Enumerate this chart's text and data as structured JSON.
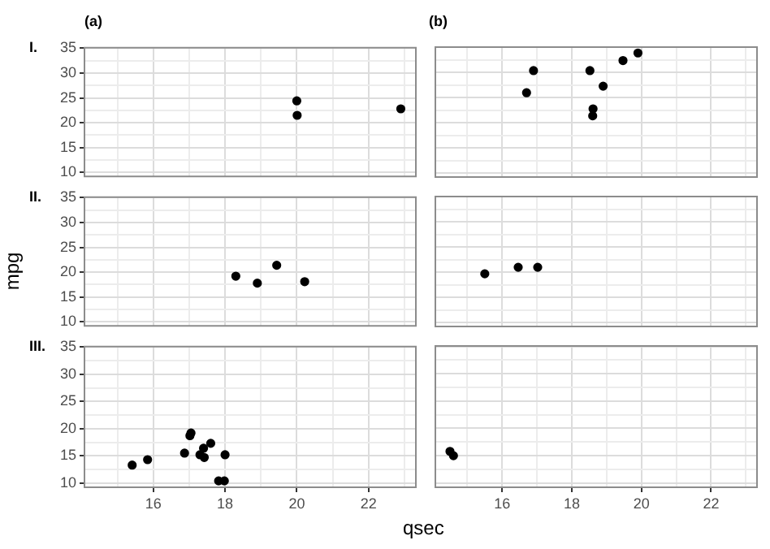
{
  "chart_data": [
    {
      "type": "scatter",
      "title": "(a)",
      "annotations": [
        "I."
      ],
      "x": [
        20.0,
        22.9,
        20.01
      ],
      "values": [
        24.4,
        22.8,
        21.5
      ],
      "color": "#000000",
      "marker": "circle",
      "xlim": [
        14.08,
        23.32
      ],
      "ylim": [
        9.225,
        35.075
      ],
      "xticks": [
        {
          "value": 15,
          "label": null
        },
        16,
        {
          "value": 17,
          "label": null
        },
        18,
        {
          "value": 19,
          "label": null
        },
        20,
        {
          "value": 21,
          "label": null
        },
        22,
        {
          "value": 23,
          "label": null
        }
      ],
      "yticks": [
        10,
        {
          "value": 12.5,
          "label": null
        },
        15,
        {
          "value": 17.5,
          "label": null
        },
        20,
        {
          "value": 22.5,
          "label": null
        },
        25,
        {
          "value": 27.5,
          "label": null
        },
        30,
        {
          "value": 32.5,
          "label": null
        },
        35
      ],
      "grid": true,
      "tick_labels": "y"
    },
    {
      "type": "scatter",
      "title": "(b)",
      "x": [
        18.61,
        19.47,
        18.52,
        19.9,
        18.9,
        16.7,
        16.9,
        18.6
      ],
      "values": [
        22.8,
        32.4,
        30.4,
        33.9,
        27.3,
        26.0,
        30.4,
        21.4
      ],
      "color": "#000000",
      "marker": "circle",
      "xlim": [
        14.08,
        23.32
      ],
      "ylim": [
        9.225,
        35.075
      ],
      "xticks": [
        {
          "value": 15,
          "label": null
        },
        16,
        {
          "value": 17,
          "label": null
        },
        18,
        {
          "value": 19,
          "label": null
        },
        20,
        {
          "value": 21,
          "label": null
        },
        22,
        {
          "value": 23,
          "label": null
        }
      ],
      "yticks": [
        10,
        {
          "value": 12.5,
          "label": null
        },
        15,
        {
          "value": 17.5,
          "label": null
        },
        20,
        {
          "value": 22.5,
          "label": null
        },
        25,
        {
          "value": 27.5,
          "label": null
        },
        30,
        {
          "value": 32.5,
          "label": null
        },
        35
      ],
      "grid": true,
      "tick_labels": false
    },
    {
      "type": "scatter",
      "ylabel": "mpg",
      "annotations": [
        "II."
      ],
      "x": [
        19.44,
        20.22,
        18.3,
        18.9
      ],
      "values": [
        21.4,
        18.1,
        19.2,
        17.8
      ],
      "color": "#000000",
      "marker": "circle",
      "xlim": [
        14.08,
        23.32
      ],
      "ylim": [
        9.225,
        35.075
      ],
      "xticks": [
        {
          "value": 15,
          "label": null
        },
        16,
        {
          "value": 17,
          "label": null
        },
        18,
        {
          "value": 19,
          "label": null
        },
        20,
        {
          "value": 21,
          "label": null
        },
        22,
        {
          "value": 23,
          "label": null
        }
      ],
      "yticks": [
        10,
        {
          "value": 12.5,
          "label": null
        },
        15,
        {
          "value": 17.5,
          "label": null
        },
        20,
        {
          "value": 22.5,
          "label": null
        },
        25,
        {
          "value": 27.5,
          "label": null
        },
        30,
        {
          "value": 32.5,
          "label": null
        },
        35
      ],
      "grid": true,
      "tick_labels": "y"
    },
    {
      "type": "scatter",
      "x": [
        16.46,
        17.02,
        15.5
      ],
      "values": [
        21.0,
        21.0,
        19.7
      ],
      "color": "#000000",
      "marker": "circle",
      "xlim": [
        14.08,
        23.32
      ],
      "ylim": [
        9.225,
        35.075
      ],
      "xticks": [
        {
          "value": 15,
          "label": null
        },
        16,
        {
          "value": 17,
          "label": null
        },
        18,
        {
          "value": 19,
          "label": null
        },
        20,
        {
          "value": 21,
          "label": null
        },
        22,
        {
          "value": 23,
          "label": null
        }
      ],
      "yticks": [
        10,
        {
          "value": 12.5,
          "label": null
        },
        15,
        {
          "value": 17.5,
          "label": null
        },
        20,
        {
          "value": 22.5,
          "label": null
        },
        25,
        {
          "value": 27.5,
          "label": null
        },
        30,
        {
          "value": 32.5,
          "label": null
        },
        35
      ],
      "grid": true,
      "tick_labels": false
    },
    {
      "type": "scatter",
      "xlabel": "qsec",
      "annotations": [
        "III."
      ],
      "x": [
        17.02,
        15.84,
        17.4,
        17.6,
        18.0,
        17.98,
        17.82,
        17.42,
        16.87,
        17.3,
        15.41,
        17.05
      ],
      "values": [
        18.7,
        14.3,
        16.4,
        17.3,
        15.2,
        10.4,
        10.4,
        14.7,
        15.5,
        15.2,
        13.3,
        19.2
      ],
      "color": "#000000",
      "marker": "circle",
      "xlim": [
        14.08,
        23.32
      ],
      "ylim": [
        9.225,
        35.075
      ],
      "xticks": [
        {
          "value": 15,
          "label": null
        },
        16,
        {
          "value": 17,
          "label": null
        },
        18,
        {
          "value": 19,
          "label": null
        },
        20,
        {
          "value": 21,
          "label": null
        },
        22,
        {
          "value": 23,
          "label": null
        }
      ],
      "yticks": [
        10,
        {
          "value": 12.5,
          "label": null
        },
        15,
        {
          "value": 17.5,
          "label": null
        },
        20,
        {
          "value": 22.5,
          "label": null
        },
        25,
        {
          "value": 27.5,
          "label": null
        },
        30,
        {
          "value": 32.5,
          "label": null
        },
        35
      ],
      "grid": true
    },
    {
      "type": "scatter",
      "x": [
        14.5,
        14.6
      ],
      "values": [
        15.8,
        15.0
      ],
      "color": "#000000",
      "marker": "circle",
      "xlim": [
        14.08,
        23.32
      ],
      "ylim": [
        9.225,
        35.075
      ],
      "xticks": [
        {
          "value": 15,
          "label": null
        },
        16,
        {
          "value": 17,
          "label": null
        },
        18,
        {
          "value": 19,
          "label": null
        },
        20,
        {
          "value": 21,
          "label": null
        },
        22,
        {
          "value": 23,
          "label": null
        }
      ],
      "yticks": [
        10,
        {
          "value": 12.5,
          "label": null
        },
        15,
        {
          "value": 17.5,
          "label": null
        },
        20,
        {
          "value": 22.5,
          "label": null
        },
        25,
        {
          "value": 27.5,
          "label": null
        },
        30,
        {
          "value": 32.5,
          "label": null
        },
        35
      ],
      "grid": true,
      "tick_labels": "x"
    }
  ]
}
